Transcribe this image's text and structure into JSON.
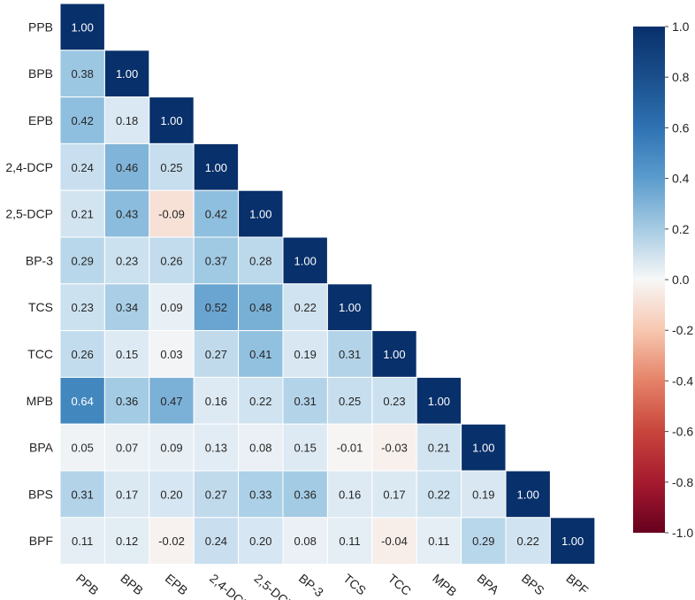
{
  "chart_data": {
    "type": "heatmap",
    "variables": [
      "PPB",
      "BPB",
      "EPB",
      "2,4-DCP",
      "2,5-DCP",
      "BP-3",
      "TCS",
      "TCC",
      "MPB",
      "BPA",
      "BPS",
      "BPF"
    ],
    "matrix": [
      [
        1.0
      ],
      [
        0.38,
        1.0
      ],
      [
        0.42,
        0.18,
        1.0
      ],
      [
        0.24,
        0.46,
        0.25,
        1.0
      ],
      [
        0.21,
        0.43,
        -0.09,
        0.42,
        1.0
      ],
      [
        0.29,
        0.23,
        0.26,
        0.37,
        0.28,
        1.0
      ],
      [
        0.23,
        0.34,
        0.09,
        0.52,
        0.48,
        0.22,
        1.0
      ],
      [
        0.26,
        0.15,
        0.03,
        0.27,
        0.41,
        0.19,
        0.31,
        1.0
      ],
      [
        0.64,
        0.36,
        0.47,
        0.16,
        0.22,
        0.31,
        0.25,
        0.23,
        1.0
      ],
      [
        0.05,
        0.07,
        0.09,
        0.13,
        0.08,
        0.15,
        -0.01,
        -0.03,
        0.21,
        1.0
      ],
      [
        0.31,
        0.17,
        0.2,
        0.27,
        0.33,
        0.36,
        0.16,
        0.17,
        0.22,
        0.19,
        1.0
      ],
      [
        0.11,
        0.12,
        -0.02,
        0.24,
        0.2,
        0.08,
        0.11,
        -0.04,
        0.11,
        0.29,
        0.22,
        1.0
      ]
    ],
    "value_range": [
      -1.0,
      1.0
    ],
    "colorbar_ticks": [
      "1.0",
      "0.8",
      "0.6",
      "0.4",
      "0.2",
      "0.0",
      "-0.2",
      "-0.4",
      "-0.6",
      "-0.8",
      "-1.0"
    ],
    "colormap": "RdBu",
    "colors": {
      "positive_max": "#08306b",
      "zero": "#f7f7f7",
      "negative_max": "#67001f"
    },
    "lower_triangle_only": true
  }
}
